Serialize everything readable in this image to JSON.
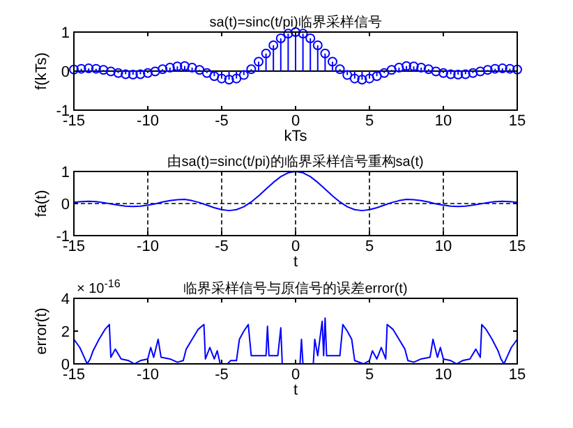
{
  "chart_data": [
    {
      "type": "lollipop",
      "title": "sa(t)=sinc(t/pi)临界采样信号",
      "xlabel": "kTs",
      "ylabel": "f(kTs)",
      "color": "#0000ff",
      "marker": "circle",
      "x": [
        -15,
        -14.5,
        -14,
        -13.5,
        -13,
        -12.5,
        -12,
        -11.5,
        -11,
        -10.5,
        -10,
        -9.5,
        -9,
        -8.5,
        -8,
        -7.5,
        -7,
        -6.5,
        -6,
        -5.5,
        -5,
        -4.5,
        -4,
        -3.5,
        -3,
        -2.5,
        -2,
        -1.5,
        -1,
        -0.5,
        0,
        0.5,
        1,
        1.5,
        2,
        2.5,
        3,
        3.5,
        4,
        4.5,
        5,
        5.5,
        6,
        6.5,
        7,
        7.5,
        8,
        8.5,
        9,
        9.5,
        10,
        10.5,
        11,
        11.5,
        12,
        12.5,
        13,
        13.5,
        14,
        14.5,
        15
      ],
      "values": [
        0.04,
        0.06,
        0.07,
        0.06,
        0.03,
        -0.01,
        -0.05,
        -0.08,
        -0.09,
        -0.08,
        -0.05,
        -0.01,
        0.05,
        0.09,
        0.12,
        0.13,
        0.09,
        0.03,
        -0.05,
        -0.13,
        -0.19,
        -0.22,
        -0.19,
        -0.1,
        0.05,
        0.24,
        0.45,
        0.66,
        0.84,
        0.96,
        1,
        0.96,
        0.84,
        0.66,
        0.45,
        0.24,
        0.05,
        -0.1,
        -0.19,
        -0.22,
        -0.19,
        -0.13,
        -0.05,
        0.03,
        0.09,
        0.13,
        0.12,
        0.09,
        0.05,
        -0.01,
        -0.05,
        -0.08,
        -0.09,
        -0.08,
        -0.05,
        -0.01,
        0.03,
        0.06,
        0.07,
        0.06,
        0.04
      ],
      "xlim": [
        -15,
        15
      ],
      "ylim": [
        -1,
        1
      ],
      "xticks": [
        -15,
        -10,
        -5,
        0,
        5,
        10,
        15
      ],
      "yticks": [
        -1,
        0,
        1
      ]
    },
    {
      "type": "line",
      "title": "由sa(t)=sinc(t/pi)的临界采样信号重构sa(t)",
      "xlabel": "t",
      "ylabel": "fa(t)",
      "color": "#0000ff",
      "grid": true,
      "line_style": "solid",
      "x": [
        -15,
        -14.5,
        -14,
        -13.5,
        -13,
        -12.5,
        -12,
        -11.5,
        -11,
        -10.5,
        -10,
        -9.5,
        -9,
        -8.5,
        -8,
        -7.5,
        -7,
        -6.5,
        -6,
        -5.5,
        -5,
        -4.5,
        -4,
        -3.5,
        -3,
        -2.5,
        -2,
        -1.5,
        -1,
        -0.5,
        0,
        0.5,
        1,
        1.5,
        2,
        2.5,
        3,
        3.5,
        4,
        4.5,
        5,
        5.5,
        6,
        6.5,
        7,
        7.5,
        8,
        8.5,
        9,
        9.5,
        10,
        10.5,
        11,
        11.5,
        12,
        12.5,
        13,
        13.5,
        14,
        14.5,
        15
      ],
      "values": [
        0.04,
        0.06,
        0.07,
        0.06,
        0.03,
        -0.01,
        -0.05,
        -0.08,
        -0.09,
        -0.08,
        -0.05,
        -0.01,
        0.05,
        0.09,
        0.12,
        0.13,
        0.09,
        0.03,
        -0.05,
        -0.13,
        -0.19,
        -0.22,
        -0.19,
        -0.1,
        0.05,
        0.24,
        0.45,
        0.66,
        0.84,
        0.96,
        1,
        0.96,
        0.84,
        0.66,
        0.45,
        0.24,
        0.05,
        -0.1,
        -0.19,
        -0.22,
        -0.19,
        -0.13,
        -0.05,
        0.03,
        0.09,
        0.13,
        0.12,
        0.09,
        0.05,
        -0.01,
        -0.05,
        -0.08,
        -0.09,
        -0.08,
        -0.05,
        -0.01,
        0.03,
        0.06,
        0.07,
        0.06,
        0.04
      ],
      "xlim": [
        -15,
        15
      ],
      "ylim": [
        -1,
        1
      ],
      "xticks": [
        -15,
        -10,
        -5,
        0,
        5,
        10,
        15
      ],
      "yticks": [
        -1,
        0,
        1
      ]
    },
    {
      "type": "line",
      "title": "临界采样信号与原信号的误差error(t)",
      "xlabel": "t",
      "ylabel": "error(t)",
      "color": "#0000ff",
      "annotations": [
        "× 10$^{-16}$"
      ],
      "x": [
        -15,
        -14.6,
        -14.3,
        -14.1,
        -13.9,
        -13.7,
        -13.3,
        -12.9,
        -12.6,
        -12.5,
        -12.2,
        -11.8,
        -11.3,
        -10.9,
        -10.5,
        -10,
        -9.8,
        -9.6,
        -9.3,
        -9.1,
        -8.5,
        -8,
        -7.6,
        -7.4,
        -7,
        -6.6,
        -6.2,
        -6.1,
        -5.8,
        -5.5,
        -5.3,
        -5.1,
        -4.6,
        -4.4,
        -4,
        -3.8,
        -3.5,
        -3.2,
        -3,
        -2.5,
        -2,
        -1.9,
        -1.8,
        -1.2,
        -1,
        -0.9,
        0,
        0.3,
        0.4,
        0.5,
        1.2,
        1.3,
        1.5,
        1.8,
        1.9,
        2,
        2.1,
        3,
        3.2,
        3.5,
        3.8,
        4,
        4.6,
        5,
        5.2,
        5.5,
        5.8,
        6.1,
        6.2,
        6.6,
        7,
        7.4,
        7.6,
        8,
        8.5,
        9.1,
        9.3,
        9.6,
        9.8,
        10,
        10.5,
        10.9,
        11.3,
        11.8,
        12.2,
        12.5,
        12.6,
        12.9,
        13.3,
        13.7,
        13.9,
        14.1,
        14.3,
        14.6,
        15
      ],
      "values": [
        1.5,
        1.0,
        0.4,
        0,
        0.3,
        0.8,
        1.5,
        2.1,
        2.4,
        0.4,
        0.9,
        0.3,
        0.2,
        0,
        0.2,
        0.3,
        1.0,
        0.4,
        1.5,
        0.4,
        0.3,
        0.1,
        0.2,
        0.9,
        1.5,
        2.1,
        2.4,
        0.3,
        1.0,
        0.3,
        0.8,
        0,
        0,
        0.2,
        0.2,
        1.5,
        2.0,
        2.4,
        0.5,
        0.5,
        0.5,
        2.3,
        0.5,
        0.5,
        2.2,
        0,
        0,
        0,
        1.5,
        0,
        0,
        1.5,
        0.5,
        2.6,
        0.5,
        2.8,
        0.5,
        0.5,
        2.4,
        2.0,
        1.5,
        0.2,
        0,
        0.2,
        0.8,
        0.3,
        1.0,
        0.3,
        2.4,
        2.1,
        1.5,
        0.9,
        0.2,
        0.1,
        0.3,
        0.4,
        1.5,
        0.4,
        1.0,
        0.3,
        0.2,
        0,
        0.2,
        0.3,
        0.9,
        0.4,
        2.4,
        2.1,
        1.5,
        0.8,
        0.3,
        0,
        0.4,
        1.0,
        1.5
      ],
      "xlim": [
        -15,
        15
      ],
      "ylim": [
        0,
        4
      ],
      "xticks": [
        -15,
        -10,
        -5,
        0,
        5,
        10,
        15
      ],
      "yticks": [
        0,
        2,
        4
      ]
    }
  ]
}
